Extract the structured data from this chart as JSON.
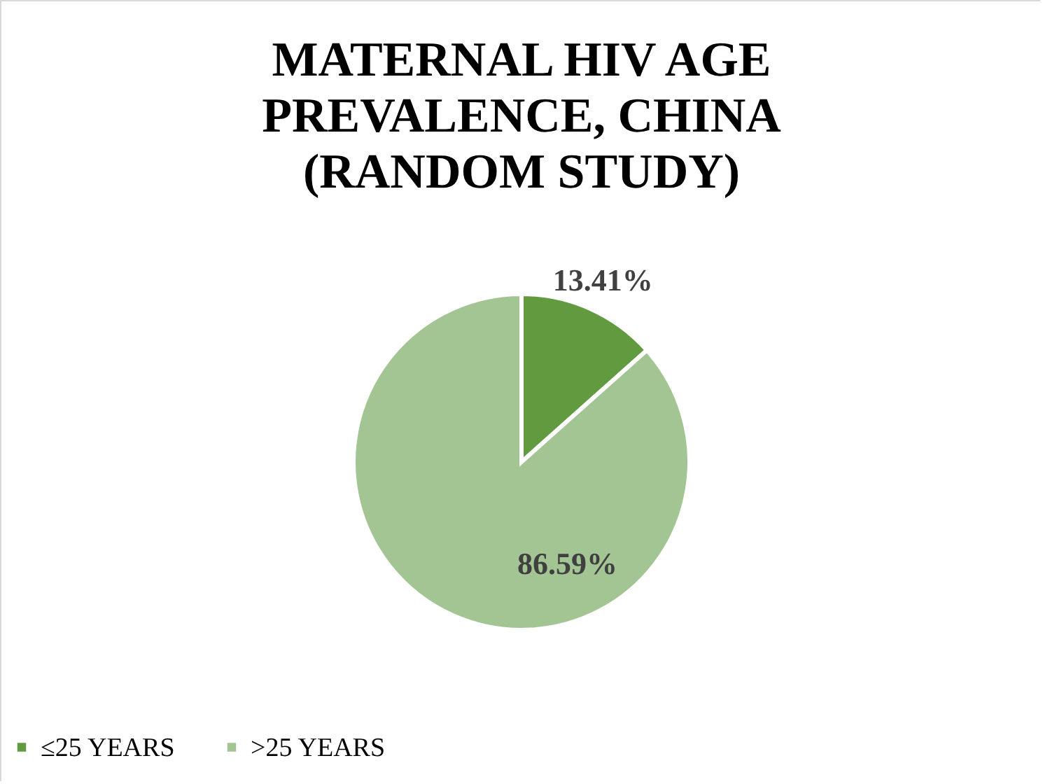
{
  "chart_data": {
    "type": "pie",
    "title": "MATERNAL HIV AGE PREVALENCE, CHINA (RANDOM STUDY)",
    "categories": [
      "≤25 YEARS",
      ">25 YEARS"
    ],
    "values": [
      13.41,
      86.59
    ],
    "colors": [
      "#629b3f",
      "#a3c593"
    ],
    "value_labels": [
      "13.41%",
      "86.59%"
    ],
    "legend": "bottom"
  }
}
